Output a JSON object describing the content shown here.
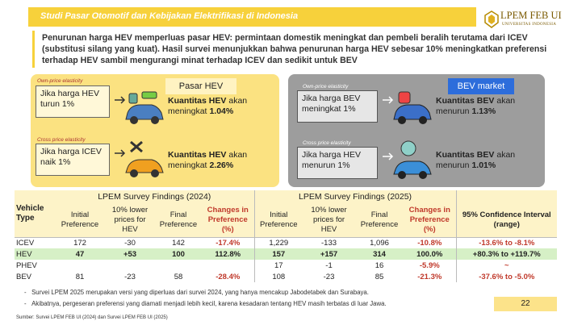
{
  "header": {
    "title": "Studi Pasar Otomotif dan Kebijakan Elektrifikasi di Indonesia",
    "logo": "LPEM FEB UI",
    "logo_sub": "UNIVERSITAS INDONESIA"
  },
  "intro": "Penurunan harga HEV memperluas pasar HEV: permintaan domestik meningkat dan pembeli beralih terutama dari ICEV (substitusi silang yang kuat). Hasil survei menunjukkan bahwa penurunan harga HEV sebesar 10% meningkatkan preferensi terhadap HEV sambil mengurangi minat terhadap ICEV dan sedikit untuk BEV",
  "panels": [
    {
      "title": "Pasar HEV",
      "own": {
        "label": "Own-price elasticity",
        "condition": [
          "Jika harga HEV",
          "turun 1%"
        ],
        "result": {
          "line1": [
            "Kuantitas HEV",
            "akan"
          ],
          "line2": [
            "meningkat",
            "1.04%"
          ]
        }
      },
      "cross": {
        "label": "Cross price elasticity",
        "condition": [
          "Jika harga ICEV",
          "naik 1%"
        ],
        "result": {
          "line1": [
            "Kuantitas HEV",
            "akan"
          ],
          "line2": [
            "meningkat",
            "2.26%"
          ]
        }
      }
    },
    {
      "title": "BEV market",
      "own": {
        "label": "Own-price elasticity",
        "condition": [
          "Jika harga BEV",
          "meningkat 1%"
        ],
        "result": {
          "line1": [
            "Kuantitas BEV",
            "akan"
          ],
          "line2": [
            "menurun",
            "1.13%"
          ]
        }
      },
      "cross": {
        "label": "Cross price elasticity",
        "condition": [
          "Jika harga HEV",
          "menurun 1%"
        ],
        "result": {
          "line1": [
            "Kuantitas BEV",
            "akan"
          ],
          "line2": [
            "menurun",
            "1.01%"
          ]
        }
      }
    }
  ],
  "table": {
    "group_headers": [
      "LPEM Survey Findings (2024)",
      "LPEM Survey Findings (2025)"
    ],
    "columns": [
      "Vehicle Type",
      "Initial Preference",
      "10% lower prices for HEV",
      "Final Preference",
      "Changes in Preference (%)",
      "Initial Preference",
      "10% lower prices for HEV",
      "Final Preference",
      "Changes in Preference (%)",
      "95% Confidence Interval (range)"
    ],
    "rows": [
      [
        "ICEV",
        "172",
        "-30",
        "142",
        "-17.4%",
        "1,229",
        "-133",
        "1,096",
        "-10.8%",
        "-13.6% to -8.1%"
      ],
      [
        "HEV",
        "47",
        "+53",
        "100",
        "112.8%",
        "157",
        "+157",
        "314",
        "100.0%",
        "+80.3% to +119.7%"
      ],
      [
        "PHEV",
        null,
        null,
        null,
        null,
        "17",
        "-1",
        "16",
        "-5.9%",
        "~"
      ],
      [
        "BEV",
        "81",
        "-23",
        "58",
        "-28.4%",
        "108",
        "-23",
        "85",
        "-21.3%",
        "-37.6% to -5.0%"
      ]
    ]
  },
  "notes": [
    "Survei LPEM 2025 merupakan versi yang diperluas dari survei 2024, yang hanya mencakup Jabodetabek dan Surabaya.",
    "Akibatnya, pergeseran preferensi yang diamati menjadi lebih kecil, karena kesadaran tentang HEV masih terbatas di luar Jawa."
  ],
  "source": "Sumber: Survei LPEM FEB UI (2024) dan Survei LPEM FEB UI (2025)",
  "page_number": "22"
}
